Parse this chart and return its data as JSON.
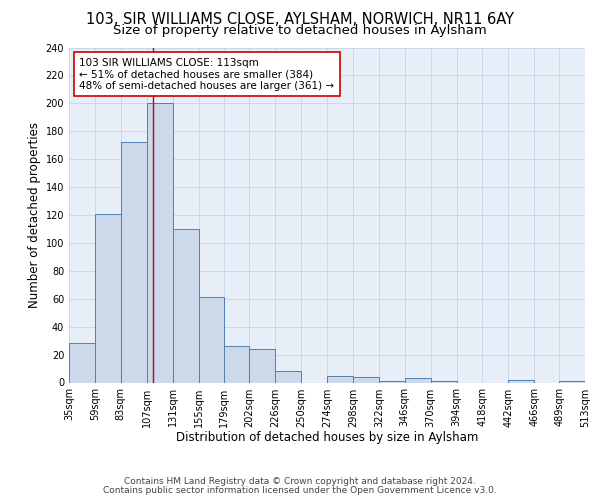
{
  "title": "103, SIR WILLIAMS CLOSE, AYLSHAM, NORWICH, NR11 6AY",
  "subtitle": "Size of property relative to detached houses in Aylsham",
  "xlabel": "Distribution of detached houses by size in Aylsham",
  "ylabel": "Number of detached properties",
  "bin_edges": [
    35,
    59,
    83,
    107,
    131,
    155,
    179,
    202,
    226,
    250,
    274,
    298,
    322,
    346,
    370,
    394,
    418,
    442,
    466,
    489,
    513
  ],
  "bin_counts": [
    28,
    121,
    172,
    200,
    110,
    61,
    26,
    24,
    8,
    0,
    5,
    4,
    1,
    3,
    1,
    0,
    0,
    2,
    0,
    1
  ],
  "bar_facecolor": "#ccd9ea",
  "bar_edgecolor": "#5080b0",
  "vline_x": 113,
  "vline_color": "#cc0000",
  "annotation_line1": "103 SIR WILLIAMS CLOSE: 113sqm",
  "annotation_line2": "← 51% of detached houses are smaller (384)",
  "annotation_line3": "48% of semi-detached houses are larger (361) →",
  "annotation_box_edgecolor": "#cc0000",
  "annotation_box_facecolor": "#ffffff",
  "ylim": [
    0,
    240
  ],
  "yticks": [
    0,
    20,
    40,
    60,
    80,
    100,
    120,
    140,
    160,
    180,
    200,
    220,
    240
  ],
  "tick_labels": [
    "35sqm",
    "59sqm",
    "83sqm",
    "107sqm",
    "131sqm",
    "155sqm",
    "179sqm",
    "202sqm",
    "226sqm",
    "250sqm",
    "274sqm",
    "298sqm",
    "322sqm",
    "346sqm",
    "370sqm",
    "394sqm",
    "418sqm",
    "442sqm",
    "466sqm",
    "489sqm",
    "513sqm"
  ],
  "footer1": "Contains HM Land Registry data © Crown copyright and database right 2024.",
  "footer2": "Contains public sector information licensed under the Open Government Licence v3.0.",
  "figure_background_color": "#ffffff",
  "plot_background_color": "#e8eef7",
  "grid_color": "#c8d4e4",
  "title_fontsize": 10.5,
  "subtitle_fontsize": 9.5,
  "axis_label_fontsize": 8.5,
  "tick_fontsize": 7,
  "annotation_fontsize": 7.5,
  "footer_fontsize": 6.5
}
